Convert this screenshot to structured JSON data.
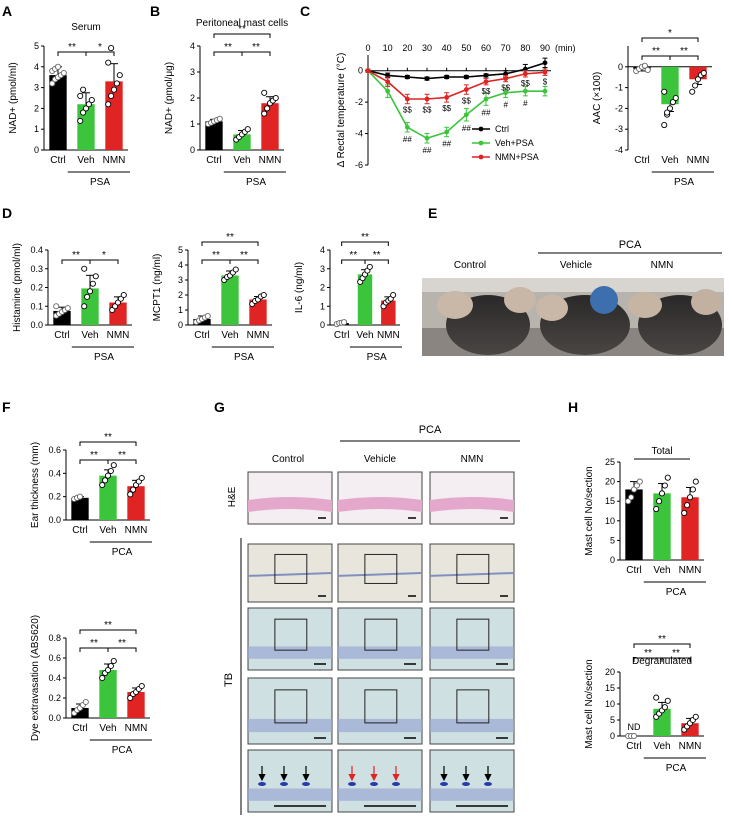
{
  "colors": {
    "ctrl": "#000000",
    "veh": "#3cc43c",
    "nmn": "#e02424",
    "axis": "#000000",
    "histo_pink": "#e8b0d0",
    "tb_bg": "#c8dde0",
    "tb_stain": "#3a3ab0",
    "photo_bg": "#b5b0aa"
  },
  "panel_letters": {
    "A": "A",
    "B": "B",
    "C": "C",
    "D": "D",
    "E": "E",
    "F": "F",
    "G": "G",
    "H": "H"
  },
  "chart_data": [
    {
      "id": "A",
      "type": "bar",
      "title": "Serum",
      "ylabel": "NAD+ (pmol/ml)",
      "categories": [
        "Ctrl",
        "Veh",
        "NMN"
      ],
      "values": [
        3.6,
        2.2,
        3.3
      ],
      "errors": [
        0.4,
        0.55,
        0.85
      ],
      "ylim": [
        0,
        5
      ],
      "ticks": [
        0,
        1,
        2,
        3,
        4,
        5
      ],
      "group_label": "PSA",
      "sig": [
        {
          "from": 0,
          "to": 1,
          "label": "**"
        },
        {
          "from": 1,
          "to": 2,
          "label": "*"
        }
      ],
      "points": [
        [
          3.2,
          3.4,
          3.5,
          3.6,
          3.7,
          3.8,
          3.9,
          4.0
        ],
        [
          1.4,
          1.8,
          2.0,
          2.2,
          2.4,
          2.6,
          2.9
        ],
        [
          2.2,
          2.6,
          2.9,
          3.2,
          3.6,
          4.2,
          4.9
        ]
      ]
    },
    {
      "id": "B",
      "type": "bar",
      "title": "Peritoneal mast cells",
      "ylabel": "NAD+ (pmol/μg)",
      "categories": [
        "Ctrl",
        "Veh",
        "NMN"
      ],
      "values": [
        1.1,
        0.6,
        1.8
      ],
      "errors": [
        0.08,
        0.15,
        0.25
      ],
      "ylim": [
        0,
        4
      ],
      "ticks": [
        0,
        1,
        2,
        3,
        4
      ],
      "group_label": "PSA",
      "sig": [
        {
          "from": 0,
          "to": 1,
          "label": "**"
        },
        {
          "from": 1,
          "to": 2,
          "label": "**"
        },
        {
          "from": 0,
          "to": 2,
          "label": "**"
        }
      ],
      "points": [
        [
          1.0,
          1.05,
          1.1,
          1.15,
          1.2
        ],
        [
          0.4,
          0.5,
          0.6,
          0.7,
          0.8
        ],
        [
          1.4,
          1.6,
          1.8,
          1.9,
          2.0,
          2.2
        ]
      ]
    },
    {
      "id": "C1",
      "type": "line",
      "ylabel": "Δ Rectal temperature (°C)",
      "xlabel": "(min)",
      "x": [
        0,
        10,
        20,
        30,
        40,
        50,
        60,
        70,
        80,
        90
      ],
      "ylim": [
        -6,
        1
      ],
      "ticks": [
        0,
        -2,
        -4,
        -6
      ],
      "series": [
        {
          "name": "Ctrl",
          "color": "#000000",
          "values": [
            0,
            -0.3,
            -0.4,
            -0.5,
            -0.4,
            -0.4,
            -0.3,
            -0.2,
            0.1,
            0.5
          ],
          "errors": [
            0.1,
            0.15,
            0.1,
            0.1,
            0.1,
            0.1,
            0.1,
            0.2,
            0.3,
            0.3
          ]
        },
        {
          "name": "Veh+PSA",
          "color": "#3cc43c",
          "values": [
            0,
            -1.3,
            -3.6,
            -4.3,
            -3.9,
            -2.8,
            -1.8,
            -1.4,
            -1.3,
            -1.3
          ],
          "errors": [
            0.1,
            0.4,
            0.3,
            0.3,
            0.3,
            0.4,
            0.4,
            0.3,
            0.3,
            0.3
          ]
        },
        {
          "name": "NMN+PSA",
          "color": "#e02424",
          "values": [
            0,
            -0.7,
            -1.8,
            -1.8,
            -1.7,
            -1.2,
            -0.7,
            -0.5,
            -0.2,
            -0.1
          ],
          "errors": [
            0.1,
            0.3,
            0.3,
            0.3,
            0.3,
            0.3,
            0.2,
            0.2,
            0.2,
            0.2
          ]
        }
      ],
      "ss_marks": [
        "$$",
        "$$",
        "$$",
        "$$",
        "$$",
        "$$",
        "$$",
        "$"
      ],
      "hash_marks": [
        "##",
        "##",
        "##",
        "##",
        "##",
        "#",
        "#"
      ]
    },
    {
      "id": "C2",
      "type": "bar",
      "ylabel": "AAC (×100)",
      "categories": [
        "Ctrl",
        "Veh",
        "NMN"
      ],
      "values": [
        -0.1,
        -1.8,
        -0.6
      ],
      "errors": [
        0.1,
        0.35,
        0.25
      ],
      "ylim": [
        -4,
        1
      ],
      "ticks": [
        0,
        -1,
        -2,
        -3,
        -4
      ],
      "group_label": "PSA",
      "sig": [
        {
          "from": 0,
          "to": 1,
          "label": "**"
        },
        {
          "from": 1,
          "to": 2,
          "label": "**"
        },
        {
          "from": 0,
          "to": 2,
          "label": "*"
        }
      ],
      "points": [
        [
          -0.2,
          -0.1,
          0,
          0.05,
          -0.15
        ],
        [
          -2.8,
          -2.3,
          -2.0,
          -1.7,
          -1.5,
          -1.2,
          -2.2
        ],
        [
          -1.2,
          -0.9,
          -0.6,
          -0.4,
          -0.3
        ]
      ]
    },
    {
      "id": "D1",
      "type": "bar",
      "ylabel": "Histamine (pmol/ml)",
      "categories": [
        "Ctrl",
        "Veh",
        "NMN"
      ],
      "values": [
        0.075,
        0.195,
        0.12
      ],
      "errors": [
        0.02,
        0.07,
        0.03
      ],
      "ylim": [
        0,
        0.4
      ],
      "ticks": [
        0,
        0.1,
        0.2,
        0.3,
        0.4
      ],
      "group_label": "PSA",
      "sig": [
        {
          "from": 0,
          "to": 1,
          "label": "**"
        },
        {
          "from": 1,
          "to": 2,
          "label": "*"
        }
      ],
      "points": [
        [
          0.05,
          0.06,
          0.07,
          0.08,
          0.09,
          0.1
        ],
        [
          0.1,
          0.15,
          0.18,
          0.22,
          0.26,
          0.3
        ],
        [
          0.08,
          0.1,
          0.12,
          0.14,
          0.16
        ]
      ]
    },
    {
      "id": "D2",
      "type": "bar",
      "ylabel": "MCPT1 (ng/ml)",
      "categories": [
        "Ctrl",
        "Veh",
        "NMN"
      ],
      "values": [
        0.4,
        3.3,
        1.7
      ],
      "errors": [
        0.2,
        0.3,
        0.2
      ],
      "ylim": [
        0,
        5
      ],
      "ticks": [
        0,
        1,
        2,
        3,
        4,
        5
      ],
      "group_label": "PSA",
      "sig": [
        {
          "from": 0,
          "to": 1,
          "label": "**"
        },
        {
          "from": 1,
          "to": 2,
          "label": "**"
        },
        {
          "from": 0,
          "to": 2,
          "label": "**"
        }
      ],
      "points": [
        [
          0.2,
          0.3,
          0.4,
          0.5,
          0.6
        ],
        [
          3.0,
          3.2,
          3.3,
          3.5,
          3.7
        ],
        [
          1.4,
          1.6,
          1.7,
          1.9,
          2.0
        ]
      ]
    },
    {
      "id": "D3",
      "type": "bar",
      "ylabel": "IL-6 (ng/ml)",
      "categories": [
        "Ctrl",
        "Veh",
        "NMN"
      ],
      "values": [
        0.1,
        2.7,
        1.3
      ],
      "errors": [
        0.05,
        0.25,
        0.2
      ],
      "ylim": [
        0,
        4
      ],
      "ticks": [
        0,
        1,
        2,
        3,
        4
      ],
      "group_label": "PSA",
      "sig": [
        {
          "from": 0,
          "to": 1,
          "label": "**"
        },
        {
          "from": 1,
          "to": 2,
          "label": "**"
        },
        {
          "from": 0,
          "to": 2,
          "label": "**"
        }
      ],
      "points": [
        [
          0.05,
          0.1,
          0.12,
          0.15
        ],
        [
          2.3,
          2.5,
          2.7,
          2.9,
          3.1
        ],
        [
          1.0,
          1.2,
          1.3,
          1.4,
          1.6
        ]
      ]
    },
    {
      "id": "F1",
      "type": "bar",
      "ylabel": "Ear thickness (mm)",
      "categories": [
        "Ctrl",
        "Veh",
        "NMN"
      ],
      "values": [
        0.19,
        0.38,
        0.29
      ],
      "errors": [
        0.01,
        0.05,
        0.05
      ],
      "ylim": [
        0,
        0.6
      ],
      "ticks": [
        0,
        0.2,
        0.4,
        0.6
      ],
      "group_label": "PCA",
      "sig": [
        {
          "from": 0,
          "to": 1,
          "label": "**"
        },
        {
          "from": 1,
          "to": 2,
          "label": "**"
        },
        {
          "from": 0,
          "to": 2,
          "label": "**"
        }
      ],
      "points": [
        [
          0.18,
          0.19,
          0.2
        ],
        [
          0.3,
          0.34,
          0.38,
          0.42,
          0.47
        ],
        [
          0.22,
          0.26,
          0.3,
          0.33,
          0.36
        ]
      ]
    },
    {
      "id": "F2",
      "type": "bar",
      "ylabel": "Dye extravasation (ABS620)",
      "categories": [
        "Ctrl",
        "Veh",
        "NMN"
      ],
      "values": [
        0.1,
        0.48,
        0.26
      ],
      "errors": [
        0.04,
        0.06,
        0.04
      ],
      "ylim": [
        0,
        0.8
      ],
      "ticks": [
        0,
        0.2,
        0.4,
        0.6,
        0.8
      ],
      "group_label": "PCA",
      "sig": [
        {
          "from": 0,
          "to": 1,
          "label": "**"
        },
        {
          "from": 1,
          "to": 2,
          "label": "**"
        },
        {
          "from": 0,
          "to": 2,
          "label": "**"
        }
      ],
      "points": [
        [
          0.05,
          0.08,
          0.1,
          0.13,
          0.16
        ],
        [
          0.4,
          0.45,
          0.48,
          0.52,
          0.57
        ],
        [
          0.2,
          0.24,
          0.26,
          0.29,
          0.32
        ]
      ]
    },
    {
      "id": "H1",
      "type": "bar",
      "ylabel": "Mast cell No/section",
      "categories": [
        "Ctrl",
        "Veh",
        "NMN"
      ],
      "values": [
        18,
        17,
        16
      ],
      "errors": [
        2,
        2.5,
        2.5
      ],
      "ylim": [
        0,
        25
      ],
      "ticks": [
        0,
        5,
        10,
        15,
        20,
        25
      ],
      "group_label": "PCA",
      "top_label": "Total",
      "sig": [],
      "points": [
        [
          15,
          16,
          18,
          19,
          20
        ],
        [
          13,
          15,
          17,
          19,
          21
        ],
        [
          12,
          14,
          16,
          18,
          20
        ]
      ]
    },
    {
      "id": "H2",
      "type": "bar",
      "ylabel": "Mast cell No/section",
      "categories": [
        "Ctrl",
        "Veh",
        "NMN"
      ],
      "values": [
        0,
        8.5,
        4
      ],
      "errors": [
        0,
        2,
        1.5
      ],
      "ylim": [
        0,
        20
      ],
      "ticks": [
        0,
        5,
        10,
        15,
        20
      ],
      "group_label": "PCA",
      "top_label": "Degranulated",
      "nd_label": "ND",
      "sig": [
        {
          "from": 0,
          "to": 1,
          "label": "**"
        },
        {
          "from": 1,
          "to": 2,
          "label": "**"
        },
        {
          "from": 0,
          "to": 2,
          "label": "**"
        }
      ],
      "points": [
        [
          0,
          0,
          0
        ],
        [
          6,
          7,
          8,
          9,
          11,
          12
        ],
        [
          2,
          3,
          4,
          5,
          6
        ]
      ]
    }
  ],
  "photo_E": {
    "group_label": "PCA",
    "labels": [
      "Control",
      "Vehicle",
      "NMN"
    ]
  },
  "histo_G": {
    "group_label": "PCA",
    "col_labels": [
      "Control",
      "Vehicle",
      "NMN"
    ],
    "row_labels": [
      "H&E",
      "TB"
    ]
  }
}
